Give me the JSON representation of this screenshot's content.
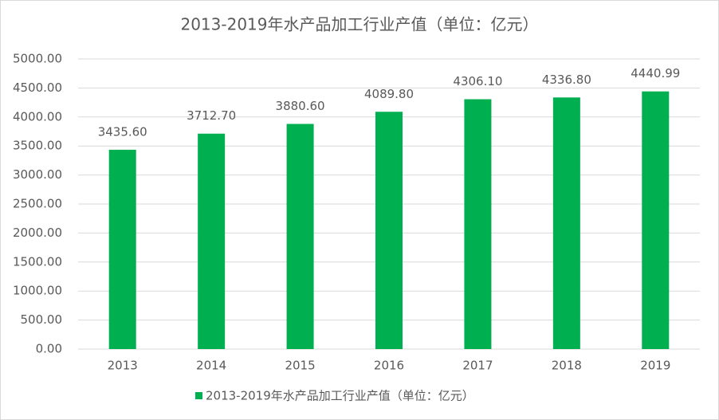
{
  "chart_data": {
    "type": "bar",
    "title": "2013-2019年水产品加工行业产值（单位：亿元）",
    "categories": [
      "2013",
      "2014",
      "2015",
      "2016",
      "2017",
      "2018",
      "2019"
    ],
    "series": [
      {
        "name": "2013-2019年水产品加工行业产值（单位：亿元）",
        "color": "#00b050",
        "values": [
          3435.6,
          3712.7,
          3880.6,
          4089.8,
          4306.1,
          4336.8,
          4440.99
        ],
        "value_labels": [
          "3435.60",
          "3712.70",
          "3880.60",
          "4089.80",
          "4306.10",
          "4336.80",
          "4440.99"
        ]
      }
    ],
    "ylim": [
      0,
      5000
    ],
    "yticks": [
      {
        "value": 0,
        "label": "0.00"
      },
      {
        "value": 500,
        "label": "500.00"
      },
      {
        "value": 1000,
        "label": "1000.00"
      },
      {
        "value": 1500,
        "label": "1500.00"
      },
      {
        "value": 2000,
        "label": "2000.00"
      },
      {
        "value": 2500,
        "label": "2500.00"
      },
      {
        "value": 3000,
        "label": "3000.00"
      },
      {
        "value": 3500,
        "label": "3500.00"
      },
      {
        "value": 4000,
        "label": "4000.00"
      },
      {
        "value": 4500,
        "label": "4500.00"
      },
      {
        "value": 5000,
        "label": "5000.00"
      }
    ],
    "grid": true,
    "legend": "bottom"
  }
}
